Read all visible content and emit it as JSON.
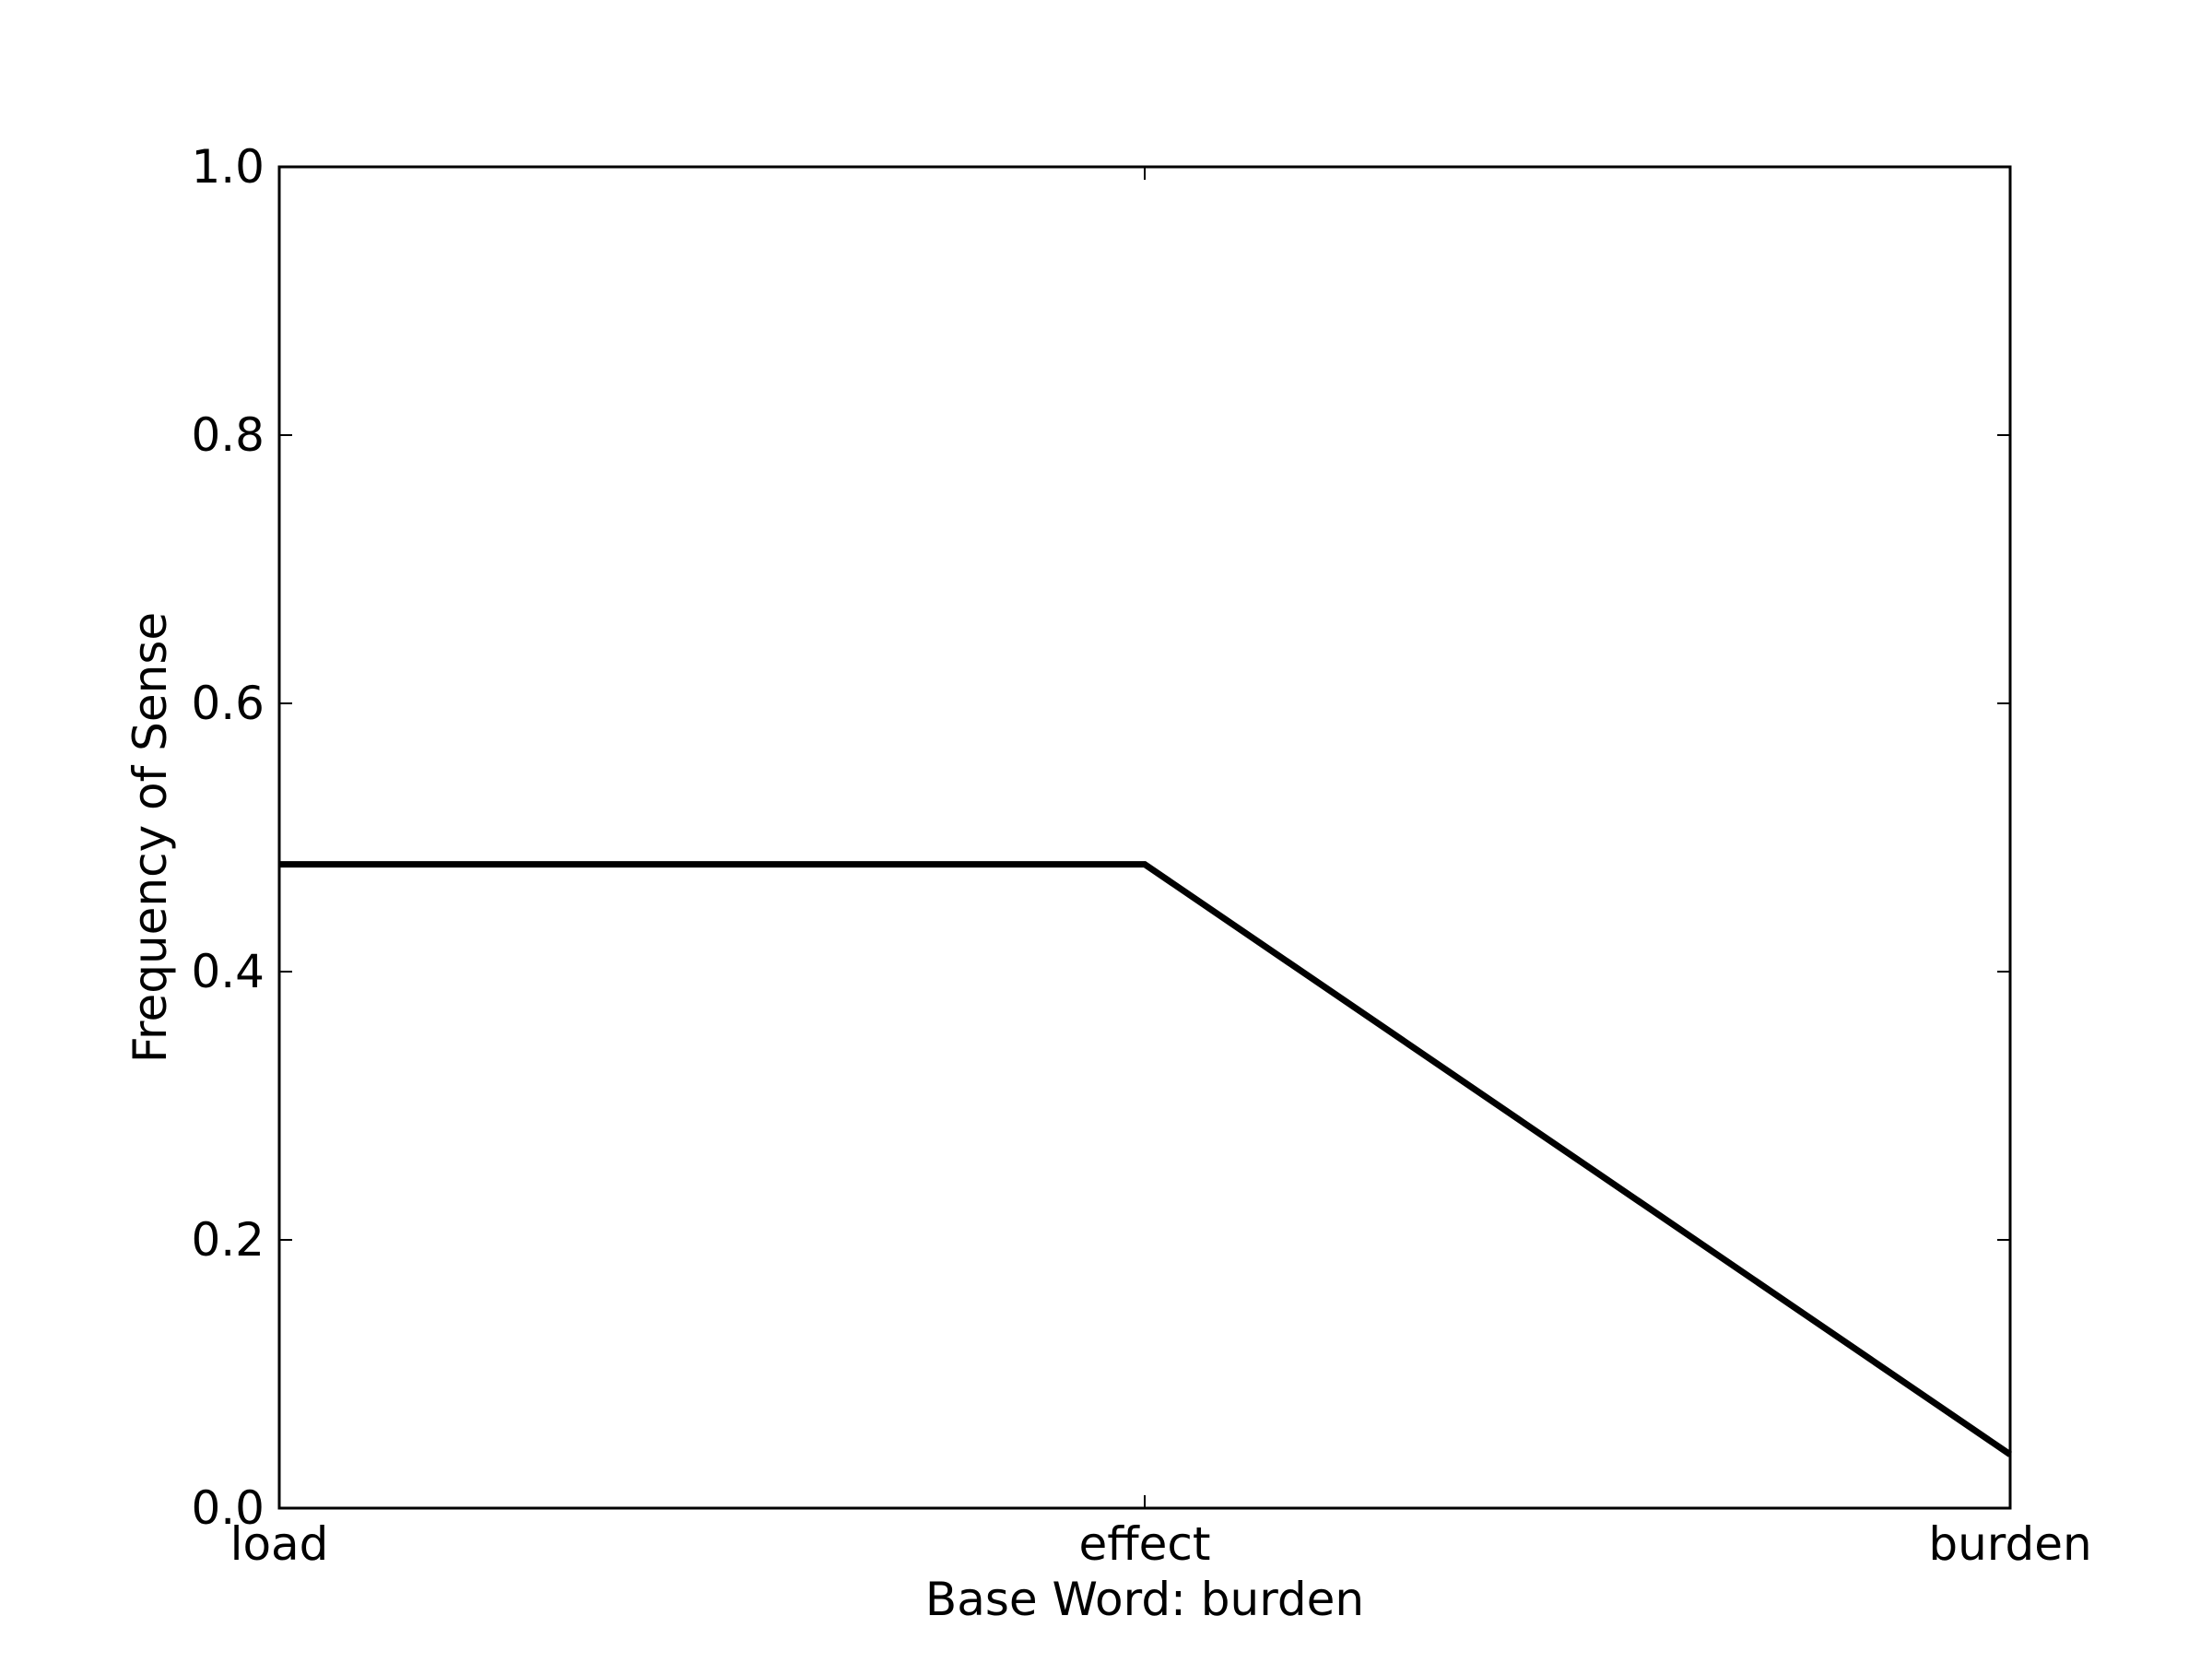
{
  "chart_data": {
    "type": "line",
    "title": "",
    "xlabel": "Base Word: burden",
    "ylabel": "Frequency of Sense",
    "categories": [
      "load",
      "effect",
      "burden"
    ],
    "series": [
      {
        "values": [
          0.48,
          0.48,
          0.04
        ],
        "color": "#000000"
      }
    ],
    "ylim": [
      0,
      1
    ],
    "yticks": [
      0.0,
      0.2,
      0.4,
      0.6,
      0.8,
      1.0
    ],
    "ytick_labels": [
      "0.0",
      "0.2",
      "0.4",
      "0.6",
      "0.8",
      "1.0"
    ],
    "grid": false,
    "legend": "none"
  }
}
